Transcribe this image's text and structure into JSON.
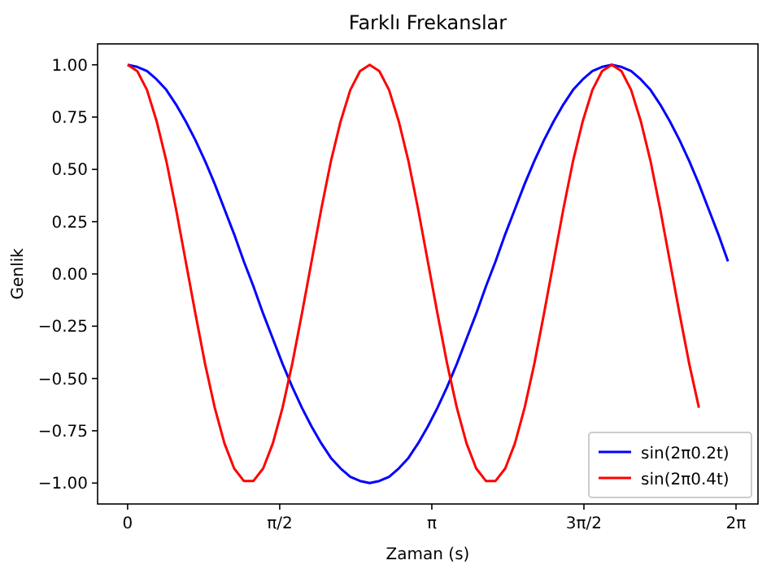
{
  "chart_data": {
    "type": "line",
    "title": "Farklı Frekanslar",
    "xlabel": "Zaman (s)",
    "ylabel": "Genlik",
    "x": [
      0,
      0.1,
      0.2,
      0.3,
      0.4,
      0.5,
      0.6,
      0.7,
      0.8,
      0.9,
      1,
      1.1,
      1.2,
      1.3,
      1.4,
      1.5,
      1.6,
      1.7,
      1.8,
      1.9,
      2,
      2.1,
      2.2,
      2.3,
      2.4,
      2.5,
      2.6,
      2.7,
      2.8,
      2.9,
      3,
      3.1,
      3.2,
      3.3,
      3.4,
      3.5,
      3.6,
      3.7,
      3.8,
      3.9,
      4,
      4.1,
      4.2,
      4.3,
      4.4,
      4.5,
      4.6,
      4.7,
      4.8,
      4.9,
      5,
      5.1,
      5.2,
      5.3,
      5.4,
      5.5,
      5.6,
      5.7,
      5.8,
      5.9,
      6,
      6.1,
      6.2
    ],
    "series": [
      {
        "name": "sin(2π0.2t)",
        "color": "#0000ff",
        "values": [
          1,
          0.99,
          0.97,
          0.93,
          0.88,
          0.81,
          0.73,
          0.64,
          0.54,
          0.43,
          0.31,
          0.19,
          0.06,
          -0.06,
          -0.19,
          -0.31,
          -0.43,
          -0.54,
          -0.64,
          -0.73,
          -0.81,
          -0.88,
          -0.93,
          -0.97,
          -0.99,
          -1,
          -0.99,
          -0.97,
          -0.93,
          -0.88,
          -0.81,
          -0.73,
          -0.64,
          -0.54,
          -0.43,
          -0.31,
          -0.19,
          -0.06,
          0.06,
          0.19,
          0.31,
          0.43,
          0.54,
          0.64,
          0.73,
          0.81,
          0.88,
          0.93,
          0.97,
          0.99,
          1,
          0.99,
          0.97,
          0.93,
          0.88,
          0.81,
          0.73,
          0.64,
          0.54,
          0.43,
          0.31,
          0.19,
          0.06
        ]
      },
      {
        "name": "sin(2π0.4t)",
        "color": "#ff0000",
        "values": [
          1,
          0.97,
          0.88,
          0.73,
          0.54,
          0.31,
          0.06,
          -0.19,
          -0.43,
          -0.64,
          -0.81,
          -0.93,
          -0.99,
          -0.99,
          -0.93,
          -0.81,
          -0.64,
          -0.43,
          -0.19,
          0.06,
          0.31,
          0.54,
          0.73,
          0.88,
          0.97,
          1,
          0.97,
          0.88,
          0.73,
          0.54,
          0.31,
          0.06,
          -0.19,
          -0.43,
          -0.64,
          -0.81,
          -0.93,
          -0.99,
          -0.99,
          -0.93,
          -0.81,
          -0.64,
          -0.43,
          -0.19,
          0.06,
          0.31,
          0.54,
          0.73,
          0.88,
          0.97,
          1,
          0.97,
          0.88,
          0.73,
          0.54,
          0.31,
          0.06,
          -0.19,
          -0.43,
          -0.64,
          null,
          null,
          null
        ]
      }
    ],
    "xlim": [
      -0.31,
      6.51
    ],
    "ylim": [
      -1.1,
      1.1
    ],
    "xticks": [
      0,
      {
        "value": 1.5708,
        "label": "π/2"
      },
      {
        "value": 3.1416,
        "label": "π"
      },
      {
        "value": 4.7124,
        "label": "3π/2"
      },
      {
        "value": 6.2832,
        "label": "2π"
      }
    ],
    "yticks": [
      {
        "value": -1,
        "label": "−1.00"
      },
      {
        "value": -0.75,
        "label": "−0.75"
      },
      {
        "value": -0.5,
        "label": "−0.50"
      },
      {
        "value": -0.25,
        "label": "−0.25"
      },
      {
        "value": 0,
        "label": "0.00"
      },
      {
        "value": 0.25,
        "label": "0.25"
      },
      {
        "value": 0.5,
        "label": "0.50"
      },
      {
        "value": 0.75,
        "label": "0.75"
      },
      {
        "value": 1,
        "label": "1.00"
      }
    ],
    "legend": "bottom right",
    "marker": "none",
    "line_style": "solid",
    "grid": false
  }
}
